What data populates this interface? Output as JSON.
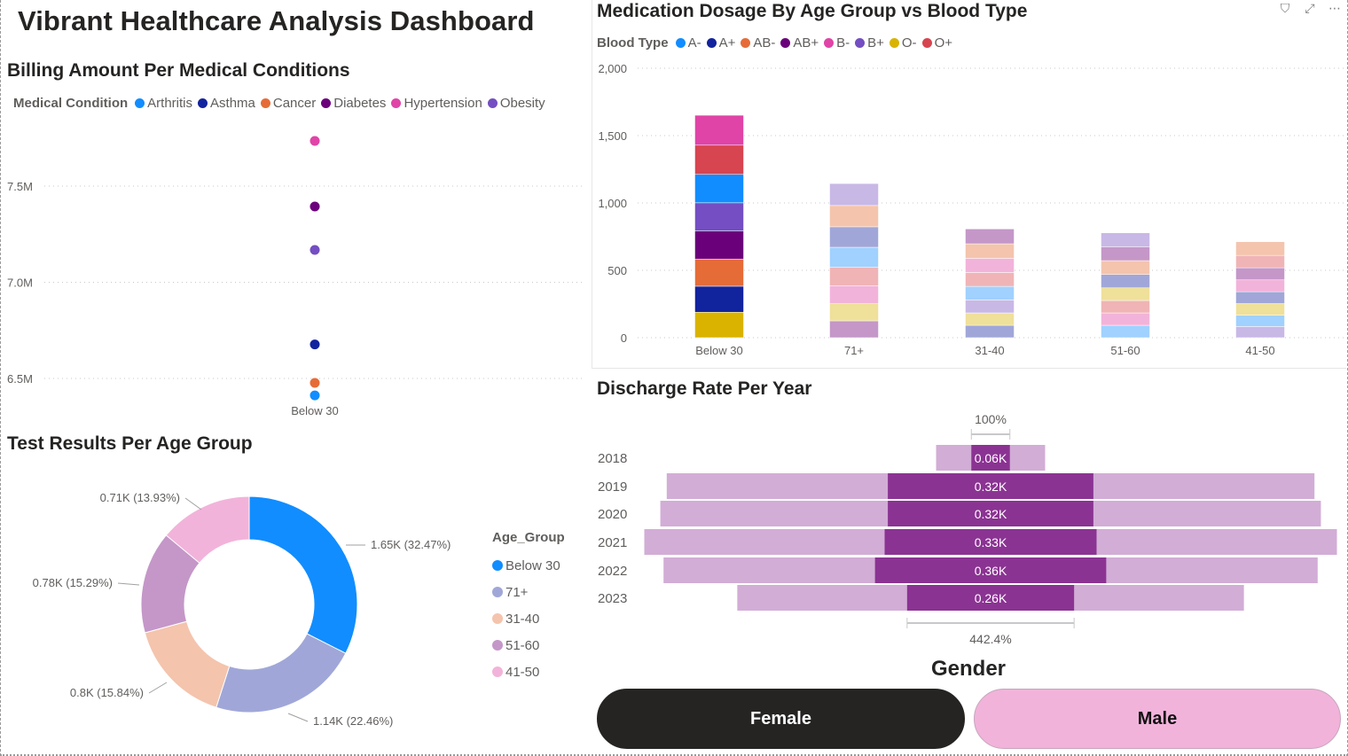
{
  "dashboard": {
    "title": "Vibrant Healthcare Analysis Dashboard"
  },
  "visual_header": {
    "icons": [
      "filter-icon",
      "focus-mode-icon",
      "more-options-icon"
    ],
    "filter_glyph": "⛉",
    "focus_glyph": "⤢",
    "more_glyph": "⋯"
  },
  "billing": {
    "title": "Billing Amount Per Medical Conditions",
    "legend_title": "Medical Condition",
    "legend": [
      {
        "label": "Arthritis",
        "color": "#118DFF"
      },
      {
        "label": "Asthma",
        "color": "#12239E"
      },
      {
        "label": "Cancer",
        "color": "#E66C37"
      },
      {
        "label": "Diabetes",
        "color": "#6B007B"
      },
      {
        "label": "Hypertension",
        "color": "#E044A7"
      },
      {
        "label": "Obesity",
        "color": "#744EC2"
      }
    ]
  },
  "medication": {
    "title": "Medication Dosage By Age Group vs Blood Type",
    "legend_title": "Blood Type",
    "legend": [
      {
        "label": "A-",
        "color": "#118DFF"
      },
      {
        "label": "A+",
        "color": "#12239E"
      },
      {
        "label": "AB-",
        "color": "#E66C37"
      },
      {
        "label": "AB+",
        "color": "#6B007B"
      },
      {
        "label": "B-",
        "color": "#E044A7"
      },
      {
        "label": "B+",
        "color": "#744EC2"
      },
      {
        "label": "O-",
        "color": "#D9B300"
      },
      {
        "label": "O+",
        "color": "#D64550"
      }
    ]
  },
  "test_results": {
    "title": "Test Results Per Age Group",
    "legend_title": "Age_Group"
  },
  "discharge": {
    "title": "Discharge Rate Per Year"
  },
  "gender": {
    "title": "Gender",
    "buttons": [
      {
        "label": "Female",
        "selected": true
      },
      {
        "label": "Male",
        "selected": false
      }
    ]
  },
  "chart_data": [
    {
      "id": "billing",
      "type": "scatter",
      "title": "Billing Amount Per Medical Conditions",
      "xlabel": "",
      "ylabel": "",
      "categories": [
        "Below 30"
      ],
      "yticks": [
        6500000,
        7000000,
        7500000
      ],
      "ytick_labels": [
        "6.5M",
        "7.0M",
        "7.5M"
      ],
      "ylim": [
        6400000,
        7850000
      ],
      "grid": true,
      "legend_position": "top-left",
      "series": [
        {
          "name": "Arthritis",
          "color": "#118DFF",
          "x": "Below 30",
          "y": 6412000
        },
        {
          "name": "Asthma",
          "color": "#12239E",
          "x": "Below 30",
          "y": 6677000
        },
        {
          "name": "Cancer",
          "color": "#E66C37",
          "x": "Below 30",
          "y": 6477000
        },
        {
          "name": "Diabetes",
          "color": "#6B007B",
          "x": "Below 30",
          "y": 7394000
        },
        {
          "name": "Hypertension",
          "color": "#E044A7",
          "x": "Below 30",
          "y": 7735000
        },
        {
          "name": "Obesity",
          "color": "#744EC2",
          "x": "Below 30",
          "y": 7168000
        }
      ]
    },
    {
      "id": "medication",
      "type": "bar",
      "stacked": true,
      "title": "Medication Dosage By Age Group vs Blood Type",
      "categories": [
        "Below 30",
        "71+",
        "31-40",
        "51-60",
        "41-50"
      ],
      "highlighted_category": "Below 30",
      "ylim": [
        0,
        2000
      ],
      "yticks": [
        0,
        500,
        1000,
        1500,
        2000
      ],
      "ytick_labels": [
        "0",
        "500",
        "1,000",
        "1,500",
        "2,000"
      ],
      "grid": true,
      "legend_position": "top-left",
      "series": [
        {
          "name": "A-",
          "color": "#118DFF",
          "faded_color": "#A0D1FF",
          "values": [
            211,
            147,
            101,
            92,
            84
          ]
        },
        {
          "name": "A+",
          "color": "#12239E",
          "faded_color": "#A0A7D8",
          "values": [
            193,
            152,
            92,
            99,
            88
          ]
        },
        {
          "name": "AB-",
          "color": "#E66C37",
          "faded_color": "#F4C4AD",
          "values": [
            202,
            158,
            108,
            103,
            101
          ]
        },
        {
          "name": "AB+",
          "color": "#6B007B",
          "faded_color": "#C497C8",
          "values": [
            208,
            125,
            110,
            103,
            90
          ]
        },
        {
          "name": "B-",
          "color": "#E044A7",
          "faded_color": "#F2B3DA",
          "values": [
            222,
            134,
            105,
            92,
            88
          ]
        },
        {
          "name": "B+",
          "color": "#744EC2",
          "faded_color": "#C8B8E6",
          "values": [
            209,
            163,
            96,
            103,
            83
          ]
        },
        {
          "name": "O-",
          "color": "#D9B300",
          "faded_color": "#EFE09A",
          "values": [
            189,
            127,
            92,
            94,
            86
          ]
        },
        {
          "name": "O+",
          "color": "#D64550",
          "faded_color": "#F0B4B6",
          "values": [
            217,
            138,
            103,
            92,
            92
          ]
        }
      ]
    },
    {
      "id": "test_results",
      "type": "pie",
      "donut": true,
      "title": "Test Results Per Age Group",
      "legend_title": "Age_Group",
      "legend_position": "right",
      "slices": [
        {
          "label": "Below 30",
          "value": 1650,
          "display": "1.65K (32.47%)",
          "percent": 32.47,
          "color": "#118DFF"
        },
        {
          "label": "71+",
          "value": 1140,
          "display": "1.14K (22.46%)",
          "percent": 22.46,
          "color": "#A0A7D8"
        },
        {
          "label": "31-40",
          "value": 800,
          "display": "0.8K (15.84%)",
          "percent": 15.84,
          "color": "#F4C4AD"
        },
        {
          "label": "51-60",
          "value": 780,
          "display": "0.78K (15.29%)",
          "percent": 15.29,
          "color": "#C497C8"
        },
        {
          "label": "41-50",
          "value": 710,
          "display": "0.71K (13.93%)",
          "percent": 13.93,
          "color": "#F2B3DA"
        }
      ]
    },
    {
      "id": "discharge",
      "type": "bar",
      "subtype": "funnel",
      "title": "Discharge Rate Per Year",
      "categories": [
        "2018",
        "2019",
        "2020",
        "2021",
        "2022",
        "2023"
      ],
      "highlight_color": "#8B3393",
      "total_color": "#D2ADD6",
      "series": [
        {
          "name": "Total",
          "values": [
            170,
            1010,
            1030,
            1080,
            1020,
            790
          ]
        },
        {
          "name": "Highlighted",
          "values": [
            60,
            320,
            320,
            330,
            360,
            260
          ],
          "labels": [
            "0.06K",
            "0.32K",
            "0.32K",
            "0.33K",
            "0.36K",
            "0.26K"
          ]
        }
      ],
      "top_annotation": "100%",
      "bottom_annotation": "442.4%"
    }
  ]
}
